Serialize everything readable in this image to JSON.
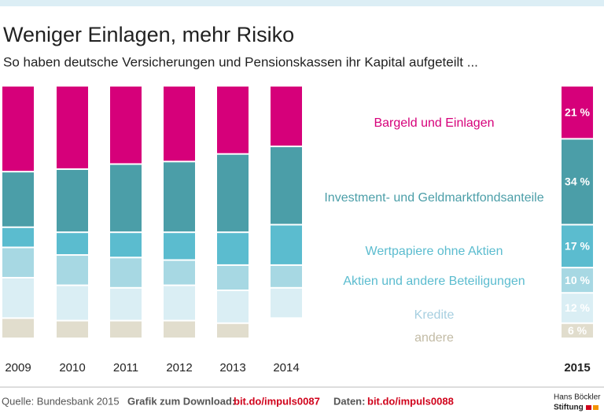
{
  "chart_data": {
    "type": "stacked-bar",
    "title": "Weniger Einlagen, mehr Risiko",
    "subtitle": "So haben deutsche Versicherungen und Pensionskassen ihr Kapital aufgeteilt ...",
    "categories": [
      "2009",
      "2010",
      "2011",
      "2012",
      "2013",
      "2014",
      "2015"
    ],
    "series": [
      {
        "name": "Bargeld und Einlagen",
        "color": "#d6007a",
        "values": [
          34,
          33,
          31,
          30,
          27,
          24,
          21
        ],
        "value_labels": [
          null,
          null,
          null,
          null,
          null,
          null,
          "21 %"
        ]
      },
      {
        "name": "Investment- und Geldmarktfondsanteile",
        "color": "#4b9ea8",
        "values": [
          22,
          25,
          27,
          28,
          31,
          31,
          34
        ],
        "value_labels": [
          null,
          null,
          null,
          null,
          null,
          null,
          "34 %"
        ]
      },
      {
        "name": "Wertpapiere ohne Aktien",
        "color": "#5bbccf",
        "values": [
          8,
          9,
          10,
          11,
          13,
          16,
          17
        ],
        "value_labels": [
          null,
          null,
          null,
          null,
          null,
          null,
          "17 %"
        ]
      },
      {
        "name": "Aktien und andere Beteiligungen",
        "color": "#a7d8e3",
        "values": [
          12,
          12,
          12,
          10,
          10,
          9,
          10
        ],
        "value_labels": [
          null,
          null,
          null,
          null,
          null,
          null,
          "10 %"
        ]
      },
      {
        "name": "Kredite",
        "color": "#daeef4",
        "values": [
          16,
          14,
          13,
          14,
          13,
          12,
          12
        ],
        "value_labels": [
          null,
          null,
          null,
          null,
          null,
          null,
          "12 %"
        ]
      },
      {
        "name": "andere",
        "color": "#e1ddcd",
        "values": [
          8,
          7,
          7,
          7,
          6,
          null,
          6
        ],
        "value_labels": [
          null,
          null,
          null,
          null,
          null,
          null,
          "6 %"
        ]
      }
    ]
  },
  "footer": {
    "source": "Quelle: Bundesbank 2015",
    "download_label": "Grafik zum Download:",
    "download_link": "bit.do/impuls0087",
    "data_label": "Daten:",
    "data_link": "bit.do/impuls0088",
    "logo_line1": "Hans Böckler",
    "logo_line2": "Stiftung"
  }
}
